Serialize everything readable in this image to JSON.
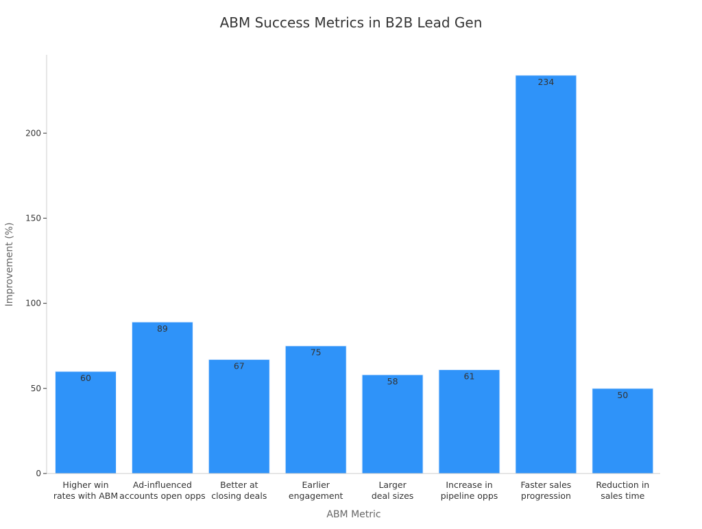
{
  "chart_data": {
    "type": "bar",
    "title": "ABM Success Metrics in B2B Lead Gen",
    "xlabel": "ABM Metric",
    "ylabel": "Improvement (%)",
    "categories": [
      [
        "Higher win",
        "rates with ABM"
      ],
      [
        "Ad-influenced",
        "accounts open opps"
      ],
      [
        "Better at",
        "closing deals"
      ],
      [
        "Earlier",
        "engagement"
      ],
      [
        "Larger",
        "deal sizes"
      ],
      [
        "Increase in",
        "pipeline opps"
      ],
      [
        "Faster sales",
        "progression"
      ],
      [
        "Reduction in",
        "sales time"
      ]
    ],
    "values": [
      60,
      89,
      67,
      75,
      58,
      61,
      234,
      50
    ],
    "yticks": [
      0,
      50,
      100,
      150,
      200
    ],
    "ylim": [
      0,
      246
    ],
    "grid": false,
    "legend": "none",
    "bar_color": "#2f93f9",
    "bar_edge_color": "#e8f2fe"
  }
}
